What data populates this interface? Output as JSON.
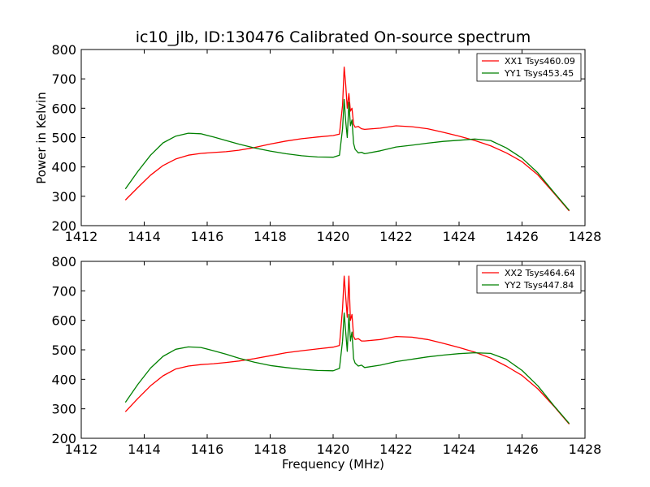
{
  "title": "ic10_jlb, ID:130476 Calibrated On-source spectrum",
  "ylabel": "Power in Kelvin",
  "xlabel": "Frequency (MHz)",
  "colors": {
    "XX": "#ff0000",
    "YY": "#008000"
  },
  "chart_data": [
    {
      "type": "line",
      "xlim": [
        1412,
        1428
      ],
      "ylim": [
        200,
        800
      ],
      "xticks": [
        1412,
        1414,
        1416,
        1418,
        1420,
        1422,
        1424,
        1426,
        1428
      ],
      "yticks": [
        200,
        300,
        400,
        500,
        600,
        700,
        800
      ],
      "legend_position": "top-right",
      "series": [
        {
          "name": "XX1 Tsys460.09",
          "color": "#ff0000",
          "x": [
            1413.4,
            1413.8,
            1414.2,
            1414.6,
            1415.0,
            1415.4,
            1415.8,
            1416.2,
            1416.6,
            1417.0,
            1417.5,
            1418.0,
            1418.5,
            1419.0,
            1419.5,
            1420.0,
            1420.2,
            1420.3,
            1420.35,
            1420.4,
            1420.45,
            1420.5,
            1420.55,
            1420.6,
            1420.65,
            1420.7,
            1420.8,
            1420.9,
            1421.0,
            1421.5,
            1422.0,
            1422.5,
            1423.0,
            1423.5,
            1424.0,
            1424.5,
            1425.0,
            1425.5,
            1426.0,
            1426.5,
            1427.0,
            1427.5
          ],
          "y": [
            287,
            330,
            372,
            405,
            427,
            440,
            446,
            449,
            452,
            457,
            466,
            478,
            488,
            496,
            502,
            507,
            512,
            610,
            740,
            680,
            600,
            650,
            590,
            600,
            545,
            535,
            538,
            530,
            528,
            532,
            540,
            537,
            530,
            518,
            505,
            490,
            472,
            448,
            418,
            373,
            312,
            250
          ]
        },
        {
          "name": "YY1 Tsys453.45",
          "color": "#008000",
          "x": [
            1413.4,
            1413.8,
            1414.2,
            1414.6,
            1415.0,
            1415.4,
            1415.8,
            1416.2,
            1416.6,
            1417.0,
            1417.5,
            1418.0,
            1418.5,
            1419.0,
            1419.5,
            1420.0,
            1420.2,
            1420.3,
            1420.35,
            1420.4,
            1420.45,
            1420.5,
            1420.55,
            1420.6,
            1420.65,
            1420.7,
            1420.8,
            1420.9,
            1421.0,
            1421.5,
            1422.0,
            1422.5,
            1423.0,
            1423.5,
            1424.0,
            1424.5,
            1425.0,
            1425.5,
            1426.0,
            1426.5,
            1427.0,
            1427.5
          ],
          "y": [
            325,
            385,
            440,
            482,
            505,
            515,
            513,
            502,
            490,
            478,
            465,
            454,
            445,
            438,
            434,
            433,
            440,
            530,
            630,
            555,
            500,
            620,
            540,
            560,
            480,
            460,
            448,
            450,
            445,
            455,
            468,
            474,
            481,
            487,
            491,
            495,
            490,
            465,
            430,
            380,
            315,
            252
          ]
        }
      ]
    },
    {
      "type": "line",
      "xlim": [
        1412,
        1428
      ],
      "ylim": [
        200,
        800
      ],
      "xticks": [
        1412,
        1414,
        1416,
        1418,
        1420,
        1422,
        1424,
        1426,
        1428
      ],
      "yticks": [
        200,
        300,
        400,
        500,
        600,
        700,
        800
      ],
      "legend_position": "top-right",
      "series": [
        {
          "name": "XX2 Tsys464.64",
          "color": "#ff0000",
          "x": [
            1413.4,
            1413.8,
            1414.2,
            1414.6,
            1415.0,
            1415.4,
            1415.8,
            1416.2,
            1416.6,
            1417.0,
            1417.5,
            1418.0,
            1418.5,
            1419.0,
            1419.5,
            1420.0,
            1420.2,
            1420.3,
            1420.35,
            1420.4,
            1420.45,
            1420.5,
            1420.55,
            1420.6,
            1420.65,
            1420.7,
            1420.8,
            1420.9,
            1421.0,
            1421.5,
            1422.0,
            1422.5,
            1423.0,
            1423.5,
            1424.0,
            1424.5,
            1425.0,
            1425.5,
            1426.0,
            1426.5,
            1427.0,
            1427.5
          ],
          "y": [
            290,
            335,
            378,
            412,
            435,
            445,
            450,
            453,
            457,
            462,
            470,
            480,
            490,
            497,
            503,
            509,
            515,
            640,
            750,
            680,
            610,
            750,
            600,
            620,
            545,
            535,
            538,
            530,
            530,
            535,
            545,
            543,
            535,
            522,
            508,
            492,
            472,
            445,
            413,
            368,
            310,
            248
          ]
        },
        {
          "name": "YY2 Tsys447.84",
          "color": "#008000",
          "x": [
            1413.4,
            1413.8,
            1414.2,
            1414.6,
            1415.0,
            1415.4,
            1415.8,
            1416.2,
            1416.6,
            1417.0,
            1417.5,
            1418.0,
            1418.5,
            1419.0,
            1419.5,
            1420.0,
            1420.2,
            1420.3,
            1420.35,
            1420.4,
            1420.45,
            1420.5,
            1420.55,
            1420.6,
            1420.65,
            1420.7,
            1420.8,
            1420.9,
            1421.0,
            1421.5,
            1422.0,
            1422.5,
            1423.0,
            1423.5,
            1424.0,
            1424.5,
            1425.0,
            1425.5,
            1426.0,
            1426.5,
            1427.0,
            1427.5
          ],
          "y": [
            322,
            383,
            438,
            478,
            502,
            510,
            508,
            497,
            485,
            472,
            458,
            447,
            440,
            434,
            430,
            429,
            437,
            530,
            625,
            560,
            495,
            620,
            530,
            560,
            470,
            455,
            445,
            448,
            440,
            448,
            460,
            468,
            476,
            482,
            487,
            490,
            488,
            468,
            430,
            378,
            312,
            250
          ]
        }
      ]
    }
  ]
}
